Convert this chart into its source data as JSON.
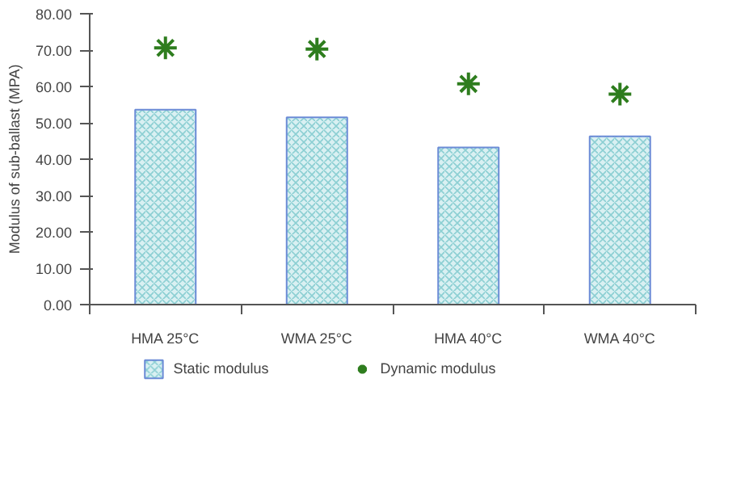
{
  "chart_data": {
    "type": "bar",
    "ylabel": "Modulus of sub-ballast (MPA)",
    "categories": [
      "HMA 25°C",
      "WMA 25°C",
      "HMA 40°C",
      "WMA 40°C"
    ],
    "series": [
      {
        "name": "Static modulus",
        "color": "#d9f0f2",
        "values": [
          53.6,
          51.5,
          43.2,
          46.3
        ]
      },
      {
        "name": "Dynamic modulus",
        "type": "scatter",
        "color": "#2e7d1e",
        "marker": "cross",
        "values": [
          70.6,
          70.3,
          60.7,
          57.9
        ]
      }
    ],
    "ylim": [
      0,
      80
    ],
    "yticks": [
      {
        "value": 0,
        "label": "0.00"
      },
      {
        "value": 10,
        "label": "10.00"
      },
      {
        "value": 20,
        "label": "20.00"
      },
      {
        "value": 30,
        "label": "30.00"
      },
      {
        "value": 40,
        "label": "40.00"
      },
      {
        "value": 50,
        "label": "50.00"
      },
      {
        "value": 60,
        "label": "60.00"
      },
      {
        "value": 70,
        "label": "70.00"
      },
      {
        "value": 80,
        "label": "80.00"
      }
    ],
    "grid": false,
    "legend": "bottom"
  }
}
